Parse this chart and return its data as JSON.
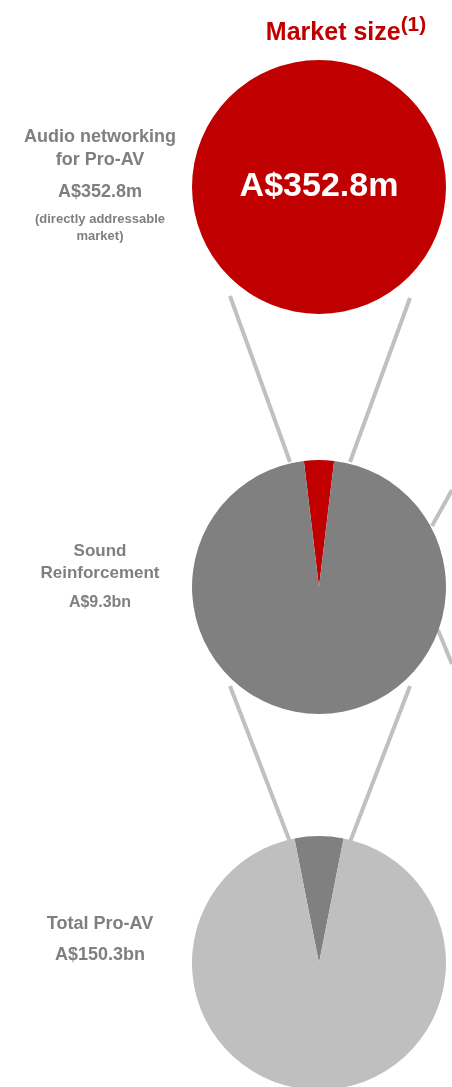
{
  "chart_data": [
    {
      "type": "pie",
      "title": "Market size$^{(1)}$",
      "categories": [
        null
      ],
      "values": [
        100
      ],
      "colors": [
        "#c00000"
      ],
      "value_labels": [
        "A$352.8m"
      ],
      "annotations": [
        "Audio networking for Pro-AV",
        "A$352.8m",
        "(directly addressable market)"
      ]
    },
    {
      "type": "pie",
      "categories": [
        null,
        null
      ],
      "values": [
        3.8,
        96.2
      ],
      "colors": [
        "#c00000",
        "#808080"
      ],
      "annotations": [
        "Sound Reinforcement",
        "A$9.3bn"
      ]
    },
    {
      "type": "pie",
      "categories": [
        null,
        null
      ],
      "values": [
        6.2,
        93.8
      ],
      "colors": [
        "#808080",
        "#bfbfbf"
      ],
      "annotations": [
        "Total Pro-AV",
        "A$150.3bn"
      ]
    }
  ]
}
